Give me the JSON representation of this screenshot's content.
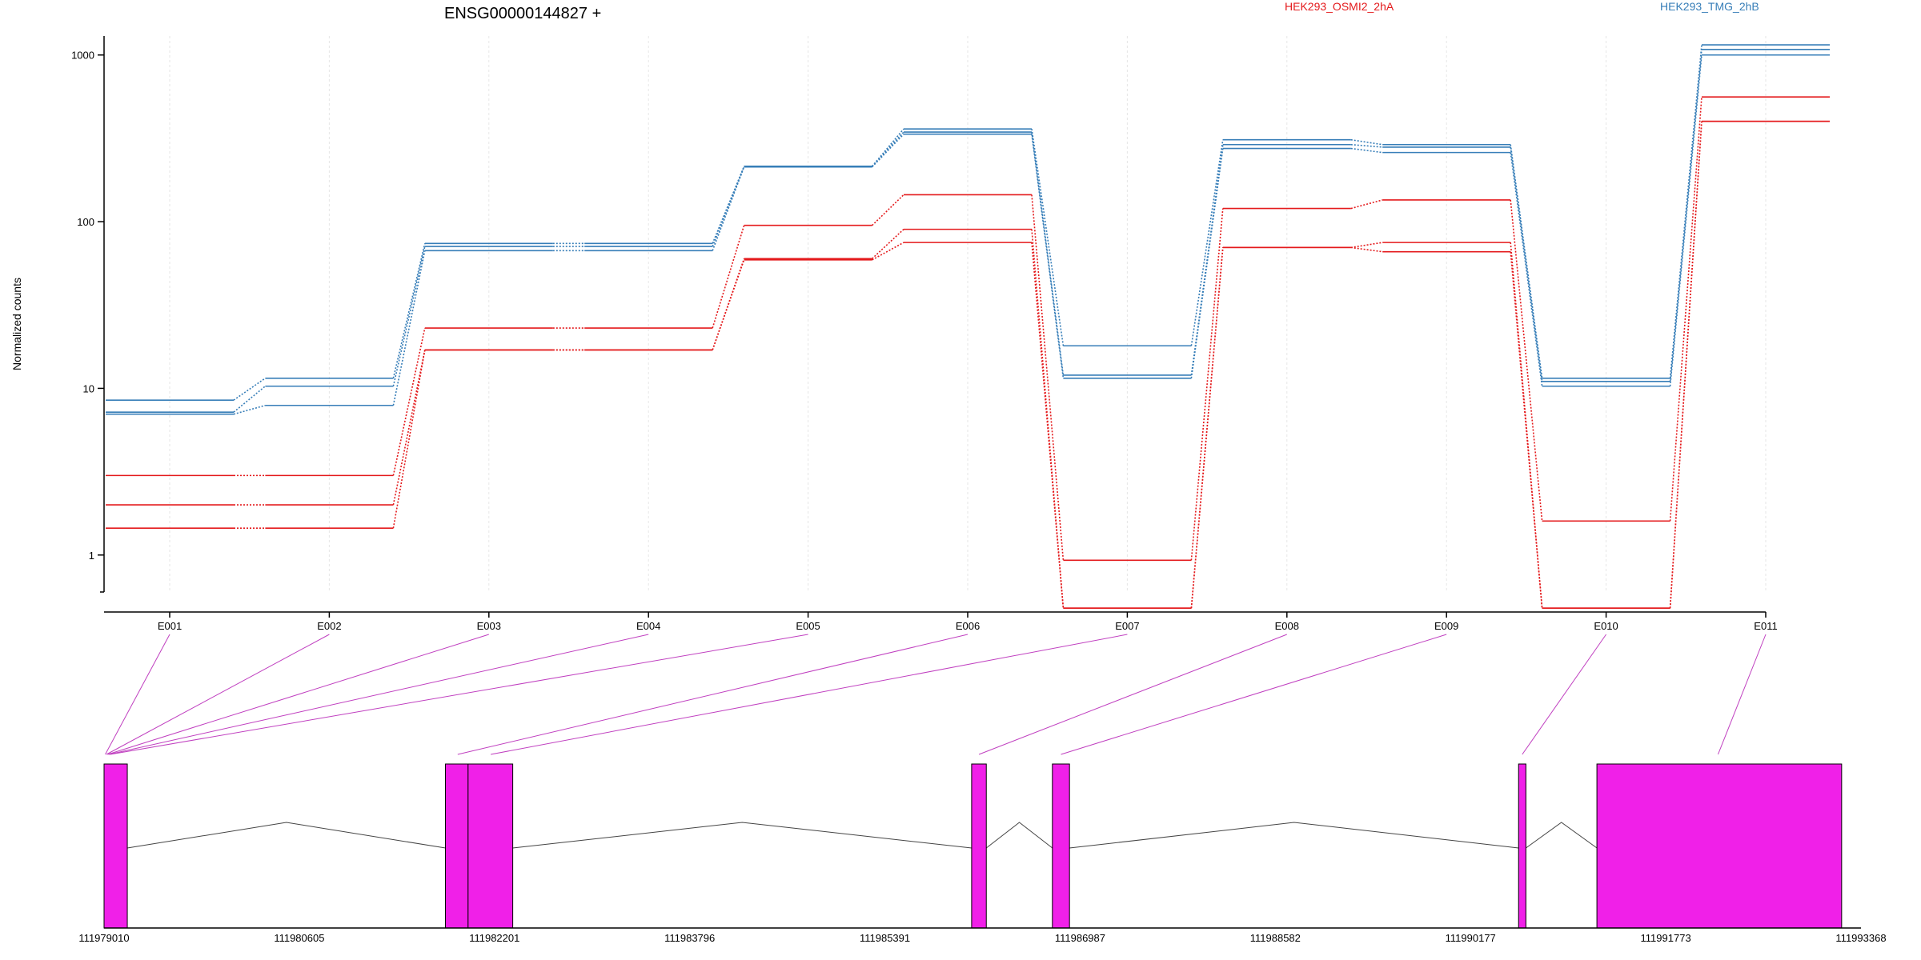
{
  "chart_data": {
    "type": "line",
    "title": "ENSG00000144827 +",
    "ylabel": "Normalized counts",
    "yscale": "log",
    "ylim": [
      0.6,
      1300
    ],
    "yticks": [
      1,
      10,
      100,
      1000
    ],
    "ytick_labels": [
      "1",
      "10",
      "100",
      "1000"
    ],
    "categories": [
      "E001",
      "E002",
      "E003",
      "E004",
      "E005",
      "E006",
      "E007",
      "E008",
      "E009",
      "E010",
      "E011"
    ],
    "grid": true,
    "legend": [
      {
        "name": "HEK293_OSMI2_2hA",
        "color": "#e41a1c"
      },
      {
        "name": "HEK293_TMG_2hB",
        "color": "#377eb8"
      }
    ],
    "series": [
      {
        "group": "HEK293_TMG_2hB",
        "color": "#377eb8",
        "values": [
          8.5,
          11.5,
          74,
          74,
          215,
          360,
          18,
          310,
          290,
          11.5,
          1150
        ]
      },
      {
        "group": "HEK293_TMG_2hB",
        "color": "#377eb8",
        "values": [
          7.2,
          10.3,
          71,
          71,
          214,
          345,
          12,
          290,
          280,
          11,
          1080
        ]
      },
      {
        "group": "HEK293_TMG_2hB",
        "color": "#377eb8",
        "values": [
          7.0,
          7.9,
          67,
          67,
          213,
          335,
          11.5,
          275,
          260,
          10.3,
          1000
        ]
      },
      {
        "group": "HEK293_OSMI2_2hA",
        "color": "#e41a1c",
        "values": [
          3.0,
          3.0,
          23,
          23,
          95,
          145,
          0.93,
          120,
          135,
          1.6,
          560
        ]
      },
      {
        "group": "HEK293_OSMI2_2hA",
        "color": "#e41a1c",
        "values": [
          2.0,
          2.0,
          17,
          17,
          60,
          90,
          0.48,
          70,
          75,
          0.48,
          400
        ]
      },
      {
        "group": "HEK293_OSMI2_2hA",
        "color": "#e41a1c",
        "values": [
          1.45,
          1.45,
          17,
          17,
          59,
          75,
          0.48,
          70,
          66,
          0.48,
          400
        ]
      }
    ],
    "gene_model": {
      "coord_labels": [
        "111979010",
        "111980605",
        "111982201",
        "111983796",
        "111985391",
        "111986987",
        "111988582",
        "111990177",
        "111991773",
        "111993368"
      ],
      "range": [
        111979010,
        111993368
      ],
      "exon_color": "#f020e8",
      "exons": [
        {
          "start": 111979010,
          "end": 111979200
        },
        {
          "start": 111981800,
          "end": 111981985
        },
        {
          "start": 111981985,
          "end": 111982350
        },
        {
          "start": 111986100,
          "end": 111986220
        },
        {
          "start": 111986760,
          "end": 111986900
        },
        {
          "start": 111990570,
          "end": 111990630
        },
        {
          "start": 111991210,
          "end": 111993210
        }
      ],
      "exon_anchors": [
        111979020,
        111979030,
        111979040,
        111979050,
        111979060,
        111981900,
        111982170,
        111986160,
        111986830,
        111990600,
        111992200
      ]
    }
  }
}
